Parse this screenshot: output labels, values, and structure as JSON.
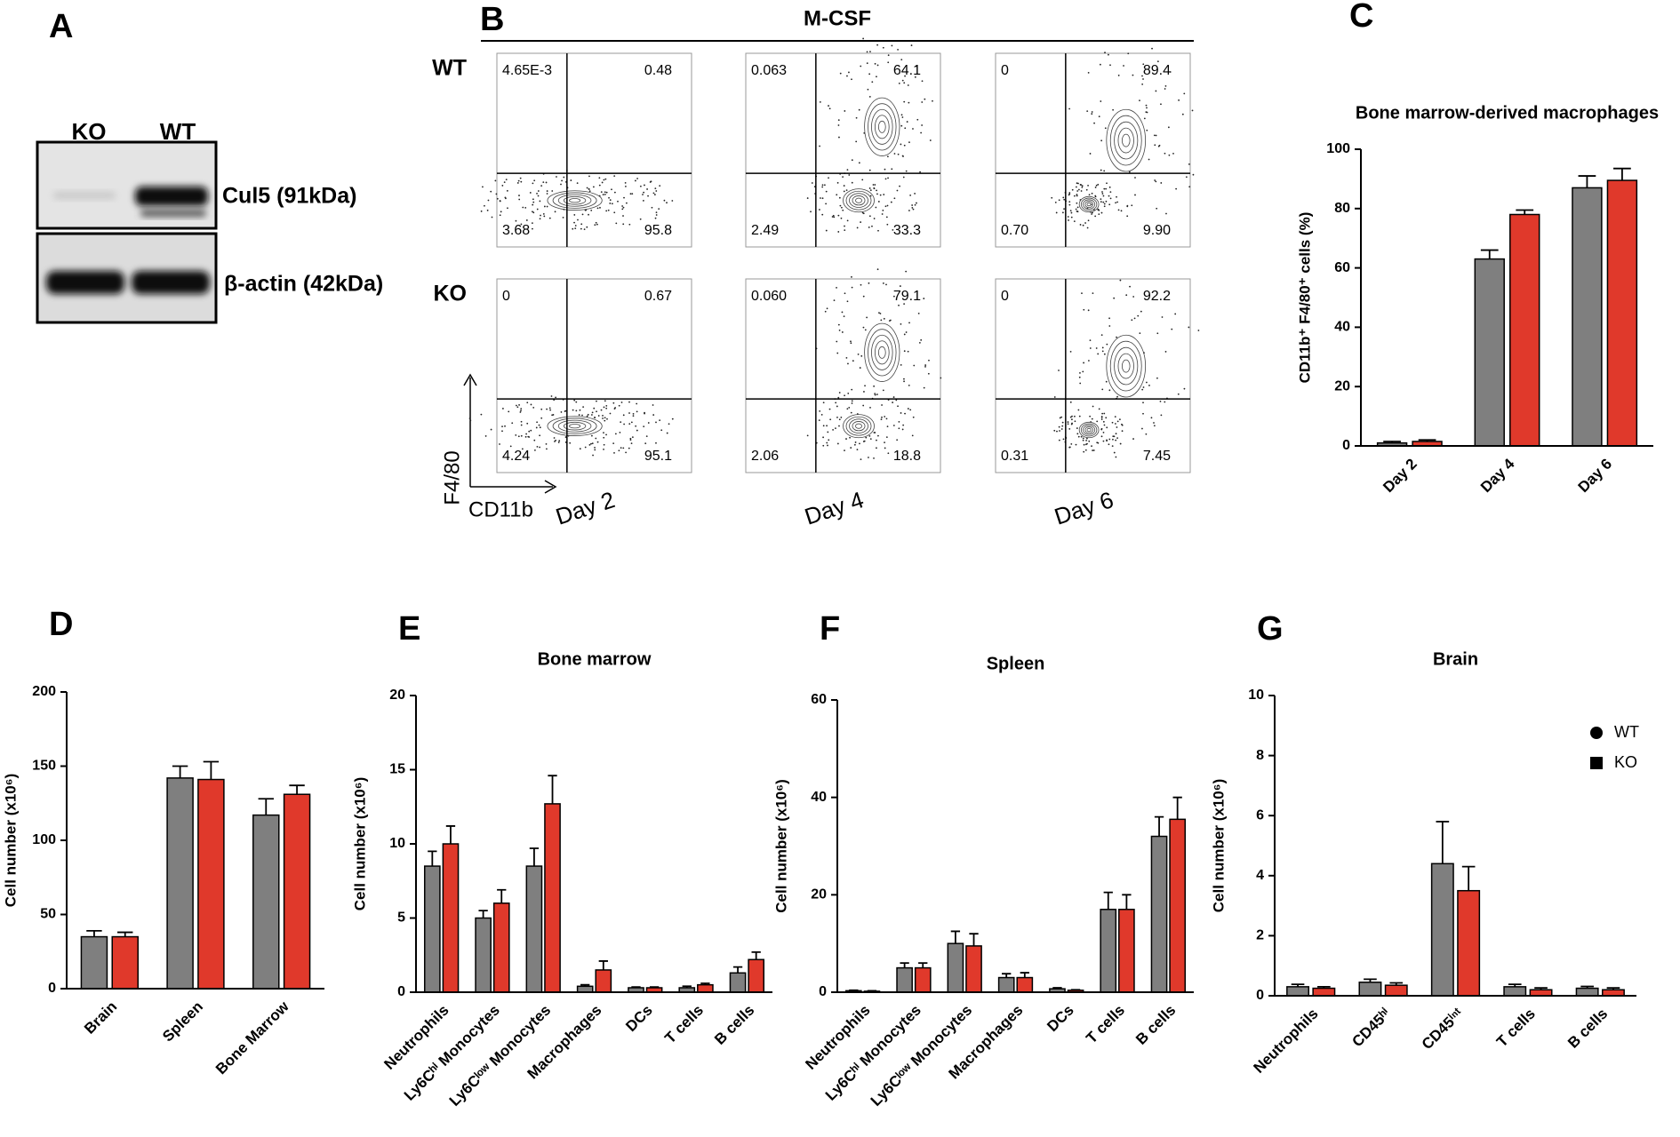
{
  "blot": {
    "panel": "A",
    "lanes": [
      "KO",
      "WT"
    ],
    "bands": [
      "Cul5 (91kDa)",
      "β-actin (42kDa)"
    ]
  },
  "flow": {
    "panel": "B",
    "title": "M-CSF",
    "y_axis": "F4/80",
    "x_axis": "CD11b",
    "days": [
      "Day 2",
      "Day 4",
      "Day 6"
    ],
    "rows": [
      {
        "label": "WT",
        "plots": [
          [
            "4.65E-3",
            "0.48",
            "3.68",
            "95.8"
          ],
          [
            "0.063",
            "64.1",
            "2.49",
            "33.3"
          ],
          [
            "0",
            "89.4",
            "0.70",
            "9.90"
          ]
        ]
      },
      {
        "label": "KO",
        "plots": [
          [
            "0",
            "0.67",
            "4.24",
            "95.1"
          ],
          [
            "0.060",
            "79.1",
            "2.06",
            "18.8"
          ],
          [
            "0",
            "92.2",
            "0.31",
            "7.45"
          ]
        ]
      }
    ]
  },
  "chart_data": [
    {
      "type": "bar",
      "panel": "C",
      "title": "Bone marrow-derived macrophages",
      "y_label": "CD11b⁺ F4/80⁺ cells (%)",
      "categories": [
        "Day 2",
        "Day 4",
        "Day 6"
      ],
      "ylim": [
        0,
        100
      ],
      "yticks": [
        0,
        20,
        40,
        60,
        80,
        100
      ],
      "legend": false,
      "series": [
        {
          "name": "WT",
          "color": "#7f7f7f",
          "values": [
            1,
            63,
            87
          ],
          "errors": [
            0.5,
            3,
            4
          ]
        },
        {
          "name": "KO",
          "color": "#e0392b",
          "values": [
            1.5,
            78,
            89.5
          ],
          "errors": [
            0.5,
            1.5,
            4
          ]
        }
      ]
    },
    {
      "type": "bar",
      "panel": "D",
      "y_label": "Cell number (x10⁶)",
      "categories": [
        "Brain",
        "Spleen",
        "Bone Marrow"
      ],
      "ylim": [
        0,
        200
      ],
      "yticks": [
        0,
        50,
        100,
        150,
        200
      ],
      "legend": false,
      "series": [
        {
          "name": "WT",
          "color": "#7f7f7f",
          "values": [
            35,
            142,
            117
          ],
          "errors": [
            4,
            8,
            11
          ]
        },
        {
          "name": "KO",
          "color": "#e0392b",
          "values": [
            35,
            141,
            131
          ],
          "errors": [
            3,
            12,
            6
          ]
        }
      ]
    },
    {
      "type": "bar",
      "panel": "E",
      "title": "Bone marrow",
      "y_label": "Cell number (x10⁶)",
      "categories": [
        "Neutrophils",
        "Ly6Cʰⁱ Monocytes",
        "Ly6Cˡᵒʷ Monocytes",
        "Macrophages",
        "DCs",
        "T cells",
        "B cells"
      ],
      "ylim": [
        0,
        20
      ],
      "yticks": [
        0,
        5,
        10,
        15,
        20
      ],
      "legend": false,
      "series": [
        {
          "name": "WT",
          "color": "#7f7f7f",
          "values": [
            8.5,
            5,
            8.5,
            0.4,
            0.3,
            0.3,
            1.3
          ],
          "errors": [
            1,
            0.5,
            1.2,
            0.1,
            0.05,
            0.1,
            0.4
          ]
        },
        {
          "name": "KO",
          "color": "#e0392b",
          "values": [
            10,
            6,
            12.7,
            1.5,
            0.3,
            0.5,
            2.2
          ],
          "errors": [
            1.2,
            0.9,
            1.9,
            0.6,
            0.05,
            0.1,
            0.5
          ]
        }
      ]
    },
    {
      "type": "bar",
      "panel": "F",
      "title": "Spleen",
      "y_label": "Cell number (x10⁶)",
      "categories": [
        "Neutrophils",
        "Ly6Cʰⁱ Monocytes",
        "Ly6Cˡᵒʷ Monocytes",
        "Macrophages",
        "DCs",
        "T cells",
        "B cells"
      ],
      "ylim": [
        0,
        60
      ],
      "yticks": [
        0,
        20,
        40,
        60
      ],
      "legend": false,
      "series": [
        {
          "name": "WT",
          "color": "#7f7f7f",
          "values": [
            0.3,
            5,
            10,
            3,
            0.7,
            17,
            32
          ],
          "errors": [
            0.1,
            1,
            2.5,
            0.8,
            0.2,
            3.5,
            4
          ]
        },
        {
          "name": "KO",
          "color": "#e0392b",
          "values": [
            0.2,
            5,
            9.5,
            3,
            0.4,
            17,
            35.5
          ],
          "errors": [
            0.1,
            1,
            2.5,
            1,
            0.1,
            3,
            4.5
          ]
        }
      ]
    },
    {
      "type": "bar",
      "panel": "G",
      "title": "Brain",
      "y_label": "Cell number (x10⁶)",
      "categories": [
        "Neutrophils",
        "CD45ʰⁱ",
        "CD45ⁱⁿᵗ",
        "T cells",
        "B cells"
      ],
      "ylim": [
        0,
        10
      ],
      "yticks": [
        0,
        2,
        4,
        6,
        8,
        10
      ],
      "legend": true,
      "legend_position": "upper right",
      "series": [
        {
          "name": "WT",
          "color": "#7f7f7f",
          "values": [
            0.3,
            0.45,
            4.4,
            0.3,
            0.25
          ],
          "errors": [
            0.08,
            0.1,
            1.4,
            0.08,
            0.06
          ]
        },
        {
          "name": "KO",
          "color": "#e0392b",
          "values": [
            0.25,
            0.35,
            3.5,
            0.2,
            0.2
          ],
          "errors": [
            0.05,
            0.08,
            0.8,
            0.06,
            0.06
          ]
        }
      ]
    }
  ]
}
